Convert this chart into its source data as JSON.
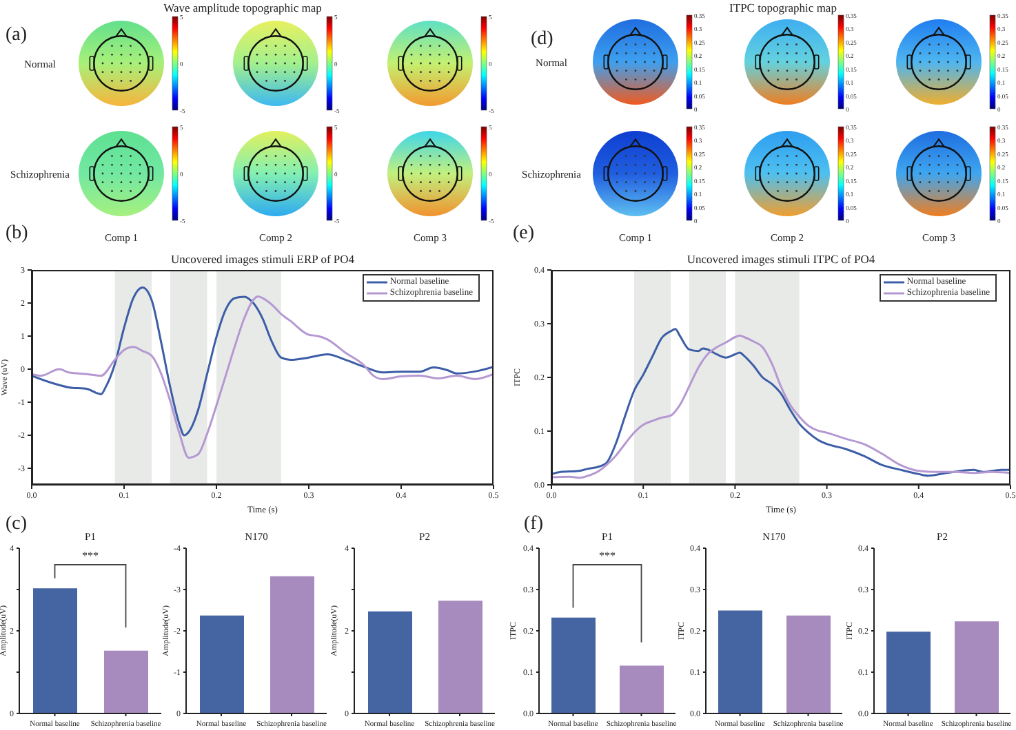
{
  "chart_data": [
    {
      "type": "heatmap",
      "title": "Wave amplitude topographic map",
      "annotations": [
        "(a)",
        "5",
        "0",
        "-5"
      ],
      "categories": [
        "Comp 1",
        "Comp 2",
        "Comp 3"
      ],
      "y_categories": [
        "Normal",
        "Schizophrenia"
      ],
      "cells": [
        [
          null,
          null,
          null
        ],
        [
          null,
          null,
          null
        ]
      ]
    },
    {
      "type": "heatmap",
      "title": "ITPC topographic map",
      "annotations": [
        "(d)",
        "0.35",
        "0.3",
        "0.25",
        "0.2",
        "0.15",
        "0.1",
        "0.05",
        "0"
      ],
      "categories": [
        "Comp 1",
        "Comp 2",
        "Comp 3"
      ],
      "y_categories": [
        "Normal",
        "Schizophrenia"
      ],
      "cells": [
        [
          null,
          null,
          null
        ],
        [
          null,
          null,
          null
        ]
      ]
    },
    {
      "type": "line",
      "title": "Uncovered images stimuli ERP of PO4",
      "annotations": [
        "(b)"
      ],
      "xlabel": "Time (s)",
      "ylabel": "Wave (uV)",
      "xlim": [
        0,
        0.5
      ],
      "xticks": [
        {
          "value": 0,
          "label": "0.0"
        },
        0.1,
        0.2,
        0.3,
        0.4,
        0.5
      ],
      "ylim": [
        -3.5,
        3
      ],
      "yticks": [
        -3,
        -2,
        -1,
        0,
        1,
        2,
        3
      ],
      "legend": "top right",
      "bands": [
        {
          "axis": "x",
          "from": 0.09,
          "to": 0.13,
          "color": "#e8eae8"
        },
        {
          "axis": "x",
          "from": 0.15,
          "to": 0.19,
          "color": "#e8eae8"
        },
        {
          "axis": "x",
          "from": 0.2,
          "to": 0.27,
          "color": "#e8eae8"
        }
      ],
      "series": [
        {
          "name": "Normal baseline",
          "color": "#3d5ea6",
          "x": [
            0,
            0.02,
            0.04,
            0.06,
            0.07,
            0.075,
            0.08,
            0.09,
            0.1,
            0.11,
            0.12,
            0.13,
            0.14,
            0.15,
            0.16,
            0.165,
            0.17,
            0.18,
            0.19,
            0.2,
            0.21,
            0.22,
            0.23,
            0.24,
            0.25,
            0.26,
            0.27,
            0.28,
            0.3,
            0.32,
            0.34,
            0.36,
            0.38,
            0.4,
            0.42,
            0.435,
            0.45,
            0.46,
            0.48,
            0.5
          ],
          "values": [
            -0.2,
            -0.4,
            -0.55,
            -0.6,
            -0.72,
            -0.76,
            -0.55,
            0.15,
            1.25,
            2.15,
            2.47,
            2.08,
            0.83,
            -0.55,
            -1.67,
            -2.0,
            -1.9,
            -1.25,
            -0.14,
            0.97,
            1.8,
            2.15,
            2.19,
            2.0,
            1.53,
            0.83,
            0.35,
            0.28,
            0.35,
            0.45,
            0.28,
            0.07,
            -0.1,
            -0.08,
            -0.08,
            0.05,
            -0.03,
            -0.13,
            -0.07,
            0.07
          ]
        },
        {
          "name": "Schizophrenia baseline",
          "color": "#b598d2",
          "x": [
            0,
            0.01,
            0.03,
            0.04,
            0.06,
            0.075,
            0.09,
            0.1,
            0.11,
            0.12,
            0.13,
            0.14,
            0.15,
            0.16,
            0.17,
            0.18,
            0.19,
            0.2,
            0.21,
            0.22,
            0.23,
            0.24,
            0.245,
            0.25,
            0.26,
            0.27,
            0.28,
            0.3,
            0.31,
            0.32,
            0.34,
            0.36,
            0.37,
            0.38,
            0.4,
            0.42,
            0.44,
            0.46,
            0.48,
            0.5
          ],
          "values": [
            -0.15,
            -0.2,
            0,
            -0.1,
            -0.15,
            -0.2,
            0.28,
            0.58,
            0.67,
            0.55,
            0.4,
            -0.13,
            -0.97,
            -1.95,
            -2.68,
            -2.58,
            -1.95,
            -1.1,
            -0.2,
            0.7,
            1.53,
            2.1,
            2.2,
            2.15,
            1.95,
            1.67,
            1.46,
            1.04,
            1.0,
            0.9,
            0.49,
            0.11,
            -0.2,
            -0.3,
            -0.22,
            -0.2,
            -0.28,
            -0.2,
            -0.3,
            -0.15
          ]
        }
      ]
    },
    {
      "type": "line",
      "title": "Uncovered images stimuli ITPC of PO4",
      "annotations": [
        "(e)"
      ],
      "xlabel": "Time (s)",
      "ylabel": "ITPC",
      "xlim": [
        0,
        0.5
      ],
      "xticks": [
        {
          "value": 0,
          "label": "0.0"
        },
        0.1,
        0.2,
        0.3,
        0.4,
        0.5
      ],
      "ylim": [
        0,
        0.4
      ],
      "yticks": [
        {
          "value": 0,
          "label": "0.0"
        },
        0.1,
        0.2,
        0.3,
        0.4
      ],
      "legend": "top right",
      "bands": [
        {
          "axis": "x",
          "from": 0.09,
          "to": 0.13,
          "color": "#e8eae8"
        },
        {
          "axis": "x",
          "from": 0.15,
          "to": 0.19,
          "color": "#e8eae8"
        },
        {
          "axis": "x",
          "from": 0.2,
          "to": 0.27,
          "color": "#e8eae8"
        }
      ],
      "series": [
        {
          "name": "Normal baseline",
          "color": "#3d5ea6",
          "x": [
            0,
            0.01,
            0.03,
            0.04,
            0.05,
            0.06,
            0.07,
            0.08,
            0.09,
            0.1,
            0.11,
            0.12,
            0.13,
            0.135,
            0.14,
            0.15,
            0.16,
            0.165,
            0.17,
            0.18,
            0.19,
            0.2,
            0.205,
            0.21,
            0.22,
            0.23,
            0.24,
            0.25,
            0.26,
            0.27,
            0.28,
            0.29,
            0.3,
            0.32,
            0.34,
            0.36,
            0.38,
            0.4,
            0.41,
            0.43,
            0.46,
            0.47,
            0.49,
            0.5
          ],
          "values": [
            0.02,
            0.024,
            0.026,
            0.03,
            0.033,
            0.041,
            0.076,
            0.127,
            0.175,
            0.205,
            0.239,
            0.273,
            0.286,
            0.29,
            0.277,
            0.252,
            0.249,
            0.254,
            0.252,
            0.243,
            0.237,
            0.243,
            0.246,
            0.24,
            0.222,
            0.2,
            0.188,
            0.17,
            0.14,
            0.114,
            0.097,
            0.084,
            0.076,
            0.067,
            0.054,
            0.037,
            0.028,
            0.02,
            0.017,
            0.022,
            0.028,
            0.024,
            0.028,
            0.028
          ]
        },
        {
          "name": "Schizophrenia baseline",
          "color": "#b598d2",
          "x": [
            0,
            0.02,
            0.03,
            0.04,
            0.05,
            0.06,
            0.07,
            0.08,
            0.09,
            0.1,
            0.11,
            0.12,
            0.13,
            0.14,
            0.15,
            0.16,
            0.17,
            0.18,
            0.19,
            0.2,
            0.205,
            0.21,
            0.22,
            0.23,
            0.24,
            0.25,
            0.26,
            0.27,
            0.28,
            0.29,
            0.3,
            0.32,
            0.34,
            0.36,
            0.38,
            0.4,
            0.42,
            0.44,
            0.46,
            0.48,
            0.5
          ],
          "values": [
            0.014,
            0.015,
            0.013,
            0.017,
            0.024,
            0.037,
            0.054,
            0.076,
            0.097,
            0.112,
            0.119,
            0.125,
            0.129,
            0.149,
            0.183,
            0.218,
            0.243,
            0.256,
            0.265,
            0.275,
            0.278,
            0.275,
            0.267,
            0.256,
            0.226,
            0.183,
            0.149,
            0.127,
            0.11,
            0.101,
            0.097,
            0.086,
            0.076,
            0.058,
            0.037,
            0.026,
            0.024,
            0.024,
            0.022,
            0.024,
            0.022
          ]
        }
      ]
    },
    {
      "type": "bar",
      "title": "P1",
      "annotations": [
        "(c)",
        "***"
      ],
      "categories": [
        "Normal baseline",
        "Schizophrenia baseline"
      ],
      "values": [
        3.03,
        1.52
      ],
      "colors": [
        "#4565a2",
        "#a78bbf"
      ],
      "ylabel": "Amplitude(uV)",
      "ylim": [
        0,
        4
      ],
      "yticks": [
        0,
        {
          "value": 1,
          "label": null
        },
        2,
        {
          "value": 3,
          "label": null
        },
        4
      ]
    },
    {
      "type": "bar",
      "title": "N170",
      "categories": [
        "Normal baseline",
        "Schizophrenia baseline"
      ],
      "values": [
        -2.37,
        -3.32
      ],
      "colors": [
        "#4565a2",
        "#a78bbf"
      ],
      "ylabel": "Amplitude(uV)",
      "ylim": [
        0,
        -4
      ],
      "yticks": [
        0,
        -1,
        -2,
        -3,
        -4
      ]
    },
    {
      "type": "bar",
      "title": "P2",
      "categories": [
        "Normal baseline",
        "Schizophrenia baseline"
      ],
      "values": [
        2.47,
        2.73
      ],
      "colors": [
        "#4565a2",
        "#a78bbf"
      ],
      "ylabel": "Amplitude(uV)",
      "ylim": [
        0,
        4
      ],
      "yticks": [
        0,
        {
          "value": 1,
          "label": null
        },
        2,
        {
          "value": 3,
          "label": null
        },
        4
      ]
    },
    {
      "type": "bar",
      "title": "P1",
      "annotations": [
        "(f)",
        "***"
      ],
      "categories": [
        "Normal baseline",
        "Schizophrenia baseline"
      ],
      "values": [
        0.232,
        0.116
      ],
      "colors": [
        "#4565a2",
        "#a78bbf"
      ],
      "ylabel": "ITPC",
      "ylim": [
        0,
        0.4
      ],
      "yticks": [
        {
          "value": 0,
          "label": "0.0"
        },
        0.1,
        0.2,
        0.3,
        0.4
      ]
    },
    {
      "type": "bar",
      "title": "N170",
      "categories": [
        "Normal baseline",
        "Schizophrenia baseline"
      ],
      "values": [
        0.249,
        0.237
      ],
      "colors": [
        "#4565a2",
        "#a78bbf"
      ],
      "ylabel": "ITPC",
      "ylim": [
        0,
        0.4
      ],
      "yticks": [
        {
          "value": 0,
          "label": "0.0"
        },
        0.1,
        0.2,
        0.3,
        0.4
      ]
    },
    {
      "type": "bar",
      "title": "P2",
      "categories": [
        "Normal baseline",
        "Schizophrenia baseline"
      ],
      "values": [
        0.198,
        0.223
      ],
      "colors": [
        "#4565a2",
        "#a78bbf"
      ],
      "ylabel": "ITPC",
      "ylim": [
        0,
        0.4
      ],
      "yticks": [
        {
          "value": 0,
          "label": "0.0"
        },
        0.1,
        0.2,
        0.3,
        0.4
      ]
    }
  ]
}
